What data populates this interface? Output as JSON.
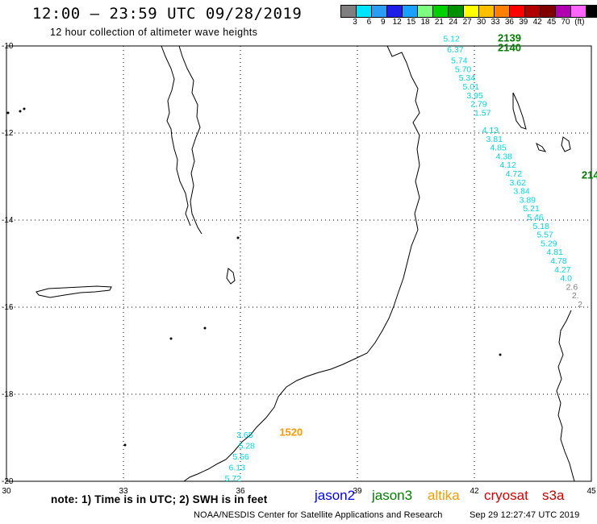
{
  "header": {
    "title": "12:00 – 23:59 UTC 09/28/2019",
    "subtitle": "12 hour collection of altimeter wave heights"
  },
  "color_scale": {
    "unit": "(ft)",
    "labels": [
      "3",
      "6",
      "9",
      "12",
      "15",
      "18",
      "21",
      "24",
      "27",
      "30",
      "33",
      "36",
      "39",
      "42",
      "45",
      "70"
    ],
    "colors": [
      "#7f7f7f",
      "#00e5ff",
      "#2a9df4",
      "#1e1ee6",
      "#1aa0ff",
      "#7fff7f",
      "#00d000",
      "#009000",
      "#ffff00",
      "#ffc000",
      "#ff7f00",
      "#ff0000",
      "#b00000",
      "#800000",
      "#b000b0",
      "#ff66ff",
      "#000000"
    ]
  },
  "map": {
    "x_ticks": [
      "30",
      "33",
      "36",
      "39",
      "42",
      "45"
    ],
    "y_ticks": [
      "-10",
      "-12",
      "-14",
      "-16",
      "-18",
      "-20"
    ],
    "lon_range": [
      30,
      45
    ],
    "lat_range": [
      -20,
      -10
    ],
    "passes": [
      {
        "id": "2139",
        "color": "#008000",
        "label_lon": 42.6,
        "label_lat": -9.9,
        "points": [
          [
            "5.12",
            41.2,
            -9.9
          ],
          [
            "6.37",
            41.3,
            -10.15
          ],
          [
            "5.74",
            41.4,
            -10.4
          ],
          [
            "5.70",
            41.5,
            -10.6
          ],
          [
            "5.34",
            41.6,
            -10.8
          ],
          [
            "5.01",
            41.7,
            -11.0
          ],
          [
            "3.95",
            41.8,
            -11.2
          ],
          [
            "2.79",
            41.9,
            -11.4
          ],
          [
            "1.57",
            42.0,
            -11.6
          ]
        ]
      },
      {
        "id": "2140",
        "color": "#008000",
        "label_lon": 42.6,
        "label_lat": -10.12,
        "points": []
      },
      {
        "id": "214",
        "color": "#008000",
        "label_lon": 44.75,
        "label_lat": -13.05,
        "points": [
          [
            "4.13",
            42.2,
            -12.0
          ],
          [
            "3.81",
            42.3,
            -12.2
          ],
          [
            "4.85",
            42.4,
            -12.4
          ],
          [
            "4.38",
            42.55,
            -12.6
          ],
          [
            "4.12",
            42.65,
            -12.8
          ],
          [
            "4.72",
            42.8,
            -13.0
          ],
          [
            "3.62",
            42.9,
            -13.2
          ],
          [
            "3.84",
            43.0,
            -13.4
          ],
          [
            "3.89",
            43.15,
            -13.6
          ],
          [
            "5.21",
            43.25,
            -13.8
          ],
          [
            "5.46",
            43.35,
            -14.0
          ],
          [
            "5.18",
            43.5,
            -14.2
          ],
          [
            "5.57",
            43.6,
            -14.4
          ],
          [
            "5.29",
            43.7,
            -14.6
          ],
          [
            "4.81",
            43.85,
            -14.8
          ],
          [
            "4.78",
            43.95,
            -15.0
          ],
          [
            "4.27",
            44.05,
            -15.2
          ],
          [
            "4.0",
            44.2,
            -15.4
          ]
        ]
      },
      {
        "id": "s3a",
        "color": "#808080",
        "label_lon": 44.9,
        "label_lat": -15.0,
        "points": [
          [
            "2.6",
            44.35,
            -15.6
          ],
          [
            "2.",
            44.5,
            -15.8
          ],
          [
            "2",
            44.65,
            -16.0
          ]
        ]
      },
      {
        "id": "1520",
        "color": "#ff9900",
        "label_lon": 37.0,
        "label_lat": -18.95,
        "points": [
          [
            "3.65",
            35.9,
            -19.0
          ],
          [
            "5.28",
            35.95,
            -19.25
          ],
          [
            "5.56",
            35.8,
            -19.5
          ],
          [
            "6.13",
            35.7,
            -19.75
          ],
          [
            "5.72",
            35.6,
            -20.0
          ]
        ]
      }
    ]
  },
  "footer": {
    "note": "note: 1) Time is in UTC; 2) SWH is in feet",
    "legend": [
      {
        "label": "jason2",
        "color": "#0000ff"
      },
      {
        "label": "jason3",
        "color": "#008000"
      },
      {
        "label": "altika",
        "color": "#ff9900"
      },
      {
        "label": "cryosat",
        "color": "#e00000"
      },
      {
        "label": "s3a",
        "color": "#cc0000"
      }
    ],
    "credit": "NOAA/NESDIS Center for Satellite Applications and Research",
    "timestamp": "Sep 29 12:27:47 UTC 2019"
  }
}
